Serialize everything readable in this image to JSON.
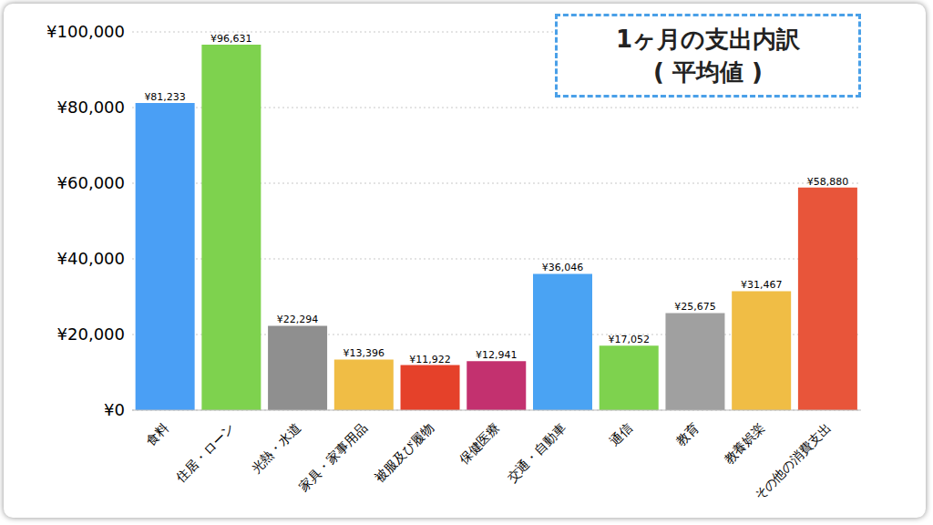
{
  "chart_data": {
    "type": "bar",
    "title": "1ヶ月の支出内訳",
    "subtitle": "( 平均値 )",
    "categories": [
      "食料",
      "住居・ローン",
      "光熱・水道",
      "家具・家事用品",
      "被服及び履物",
      "保健医療",
      "交通・自動車",
      "通信",
      "教育",
      "教養娯楽",
      "その他の消費支出"
    ],
    "values": [
      81233,
      96631,
      22294,
      13396,
      11922,
      12941,
      36046,
      17052,
      25675,
      31467,
      58880
    ],
    "value_labels": [
      "¥81,233",
      "¥96,631",
      "¥22,294",
      "¥13,396",
      "¥11,922",
      "¥12,941",
      "¥36,046",
      "¥17,052",
      "¥25,675",
      "¥31,467",
      "¥58,880"
    ],
    "colors": [
      "#4a9ff5",
      "#7ed24e",
      "#8f8f8f",
      "#f0bd45",
      "#e5412a",
      "#c3316f",
      "#4aa3f3",
      "#7ed24e",
      "#a0a0a0",
      "#f0bd45",
      "#e8553a"
    ],
    "ylim": [
      0,
      100000
    ],
    "yticks": [
      {
        "value": 0,
        "label": "¥0"
      },
      {
        "value": 20000,
        "label": "¥20,000"
      },
      {
        "value": 40000,
        "label": "¥40,000"
      },
      {
        "value": 60000,
        "label": "¥60,000"
      },
      {
        "value": 80000,
        "label": "¥80,000"
      },
      {
        "value": 100000,
        "label": "¥100,000"
      }
    ],
    "grid": true,
    "data_labels": true
  }
}
